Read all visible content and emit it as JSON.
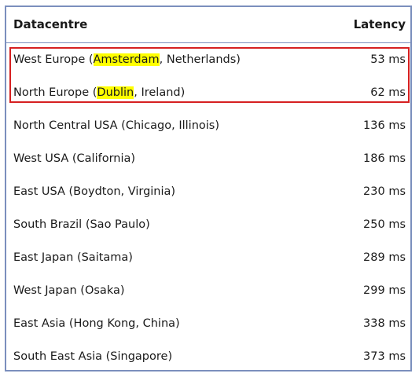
{
  "header": {
    "datacentre_label": "Datacentre",
    "latency_label": "Latency"
  },
  "highlight_color": "#ffff00",
  "selection_box_color": "#d62021",
  "rows": [
    {
      "prefix": "West Europe (",
      "highlight": "Amsterdam",
      "suffix": ", Netherlands)",
      "latency": "53 ms"
    },
    {
      "prefix": "North Europe (",
      "highlight": "Dublin",
      "suffix": ", Ireland)",
      "latency": "62 ms"
    },
    {
      "prefix": "North Central USA (Chicago, Illinois)",
      "highlight": "",
      "suffix": "",
      "latency": "136 ms"
    },
    {
      "prefix": "West USA (California)",
      "highlight": "",
      "suffix": "",
      "latency": "186 ms"
    },
    {
      "prefix": "East USA (Boydton, Virginia)",
      "highlight": "",
      "suffix": "",
      "latency": "230 ms"
    },
    {
      "prefix": "South Brazil (Sao Paulo)",
      "highlight": "",
      "suffix": "",
      "latency": "250 ms"
    },
    {
      "prefix": "East Japan (Saitama)",
      "highlight": "",
      "suffix": "",
      "latency": "289 ms"
    },
    {
      "prefix": "West Japan (Osaka)",
      "highlight": "",
      "suffix": "",
      "latency": "299 ms"
    },
    {
      "prefix": "East Asia (Hong Kong, China)",
      "highlight": "",
      "suffix": "",
      "latency": "338 ms"
    },
    {
      "prefix": "South East Asia (Singapore)",
      "highlight": "",
      "suffix": "",
      "latency": "373 ms"
    }
  ]
}
